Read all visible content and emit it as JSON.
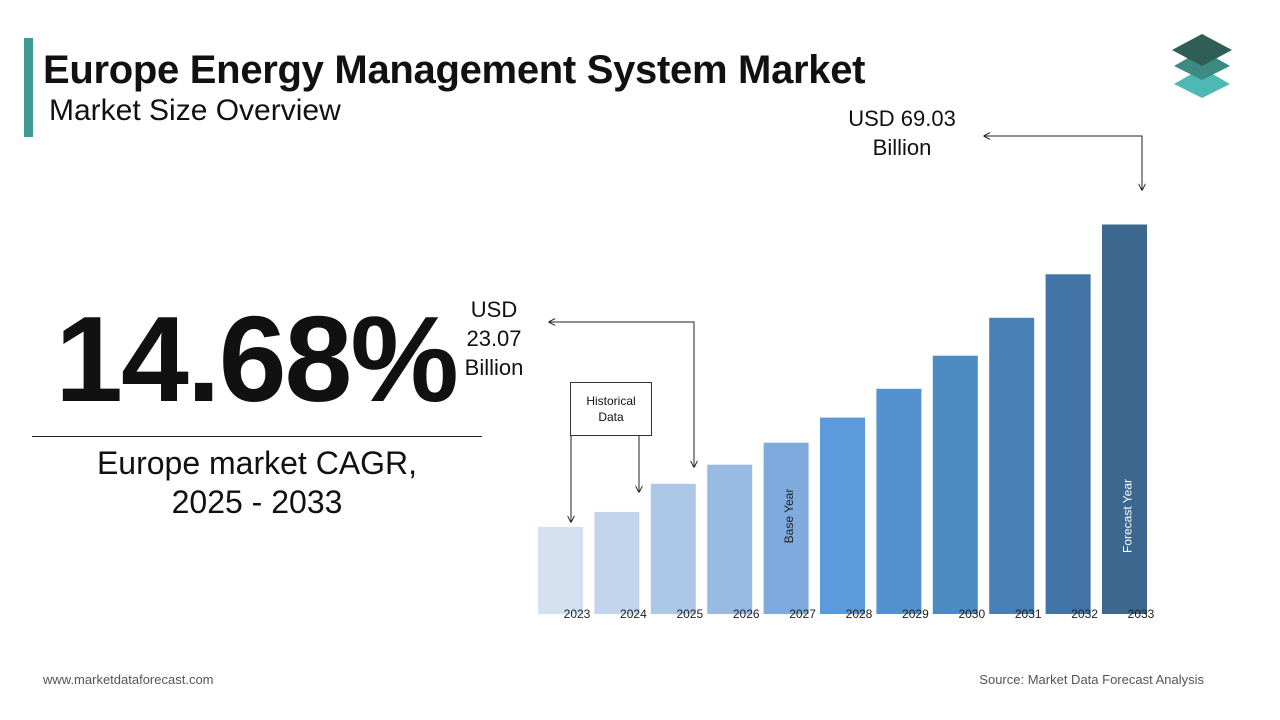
{
  "header": {
    "title": "Europe Energy Management System Market",
    "subtitle": "Market Size Overview"
  },
  "highlight": {
    "cagr_value": "14.68%",
    "cagr_caption_line1": "Europe market CAGR,",
    "cagr_caption_line2": "2025 - 2033"
  },
  "callouts": {
    "start": {
      "line1": "USD",
      "line2": "23.07",
      "line3": "Billion"
    },
    "end": {
      "line1": "USD 69.03",
      "line2": "Billion"
    },
    "historical_line1": "Historical",
    "historical_line2": "Data"
  },
  "chart_data": {
    "type": "bar",
    "categories": [
      "2023",
      "2024",
      "2025",
      "2026",
      "2027",
      "2028",
      "2029",
      "2030",
      "2031",
      "2032",
      "2033"
    ],
    "values": [
      15.44,
      18.1,
      23.07,
      26.46,
      30.35,
      34.8,
      39.91,
      45.77,
      52.49,
      60.2,
      69.03
    ],
    "ylim": [
      0,
      70
    ],
    "grid": false,
    "bar_labels": {
      "2027": "Base Year",
      "2033": "Forecast Year"
    },
    "colors": [
      "#d3e0f0",
      "#c3d5ec",
      "#adc7e7",
      "#97bae2",
      "#7eaade",
      "#5b9bdc",
      "#5492cf",
      "#4e8bc3",
      "#4880b5",
      "#4275a6",
      "#3c6890"
    ]
  },
  "footer": {
    "website": "www.marketdataforecast.com",
    "source": "Source: Market Data Forecast Analysis"
  },
  "colors": {
    "accent": "#3f9a97",
    "logo_top": "#2f5e56",
    "logo_middle": "#3d8a82",
    "logo_bottom": "#4fb8b4"
  }
}
